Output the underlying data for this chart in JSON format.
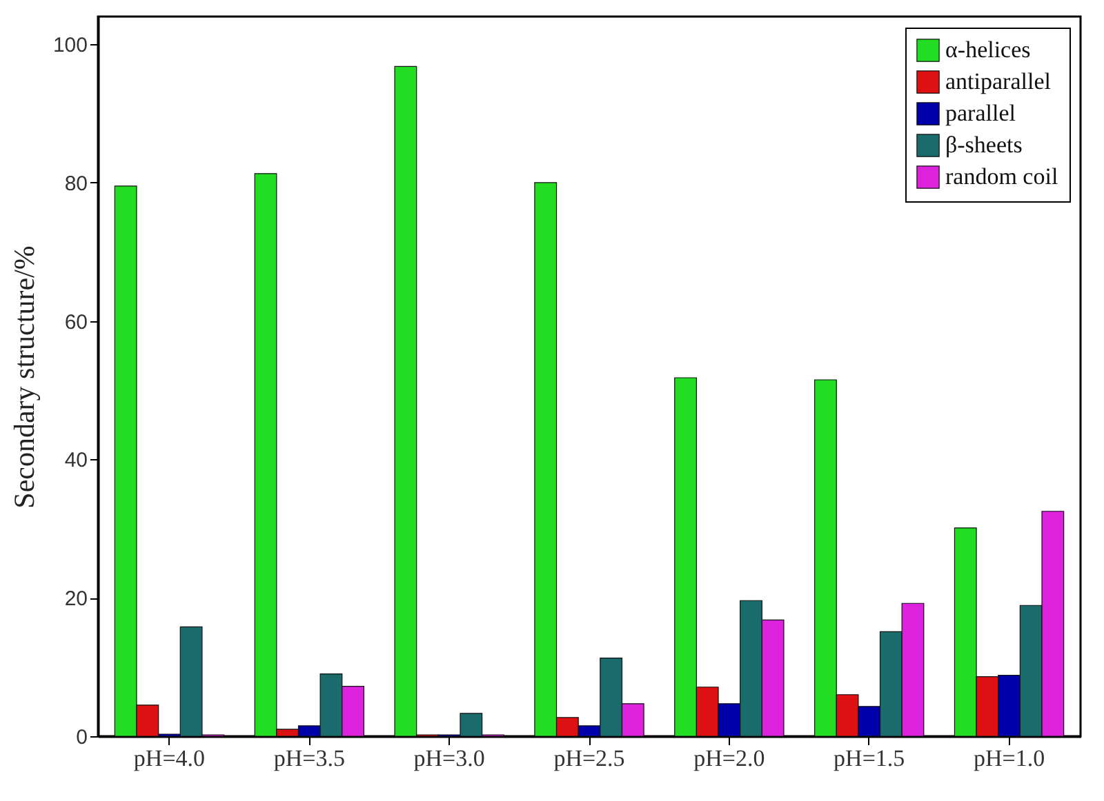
{
  "chart_data": {
    "type": "bar",
    "ylabel": "Secondary structure/%",
    "categories": [
      "pH=4.0",
      "pH=3.5",
      "pH=3.0",
      "pH=2.5",
      "pH=2.0",
      "pH=1.5",
      "pH=1.0"
    ],
    "series": [
      {
        "name": "α-helices",
        "color": "#22dd22",
        "values": [
          79.5,
          81.3,
          96.8,
          80,
          51.8,
          51.5,
          30.1
        ]
      },
      {
        "name": "antiparallel",
        "color": "#dd1111",
        "values": [
          4.5,
          1.0,
          0.2,
          2.7,
          7.1,
          6.0,
          8.6
        ]
      },
      {
        "name": "parallel",
        "color": "#0000aa",
        "values": [
          0.3,
          1.5,
          0.2,
          1.5,
          4.7,
          4.3,
          8.8
        ]
      },
      {
        "name": "β-sheets",
        "color": "#1a6b6b",
        "values": [
          15.8,
          9.0,
          3.3,
          11.3,
          19.6,
          15.1,
          18.9
        ]
      },
      {
        "name": "random coil",
        "color": "#dd22dd",
        "values": [
          0.2,
          7.2,
          0.2,
          4.7,
          16.8,
          19.2,
          32.5
        ]
      }
    ],
    "ylim": [
      0,
      104
    ],
    "yticks": [
      0,
      20,
      40,
      60,
      80,
      100
    ],
    "grid": false,
    "legend": "top right"
  }
}
